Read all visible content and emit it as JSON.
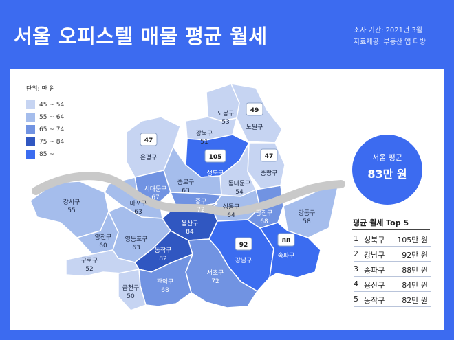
{
  "header": {
    "title": "서울 오피스텔 매물 평균 월세",
    "survey_period": "조사 기간: 2021년 3월",
    "source": "자료제공: 부동산 앱 다방"
  },
  "unit_label": "단위: 만 원",
  "legend": [
    {
      "label": "45 ~ 54",
      "color": "#c6d4f2"
    },
    {
      "label": "55 ~ 64",
      "color": "#a5bdec"
    },
    {
      "label": "65 ~ 74",
      "color": "#7193e2"
    },
    {
      "label": "75 ~ 84",
      "color": "#3057c1"
    },
    {
      "label": "85 ~",
      "color": "#3b6cf0"
    }
  ],
  "seoul_average": {
    "label": "서울 평균",
    "value": "83만 원"
  },
  "top5": {
    "title": "평균 월세 Top 5",
    "rows": [
      {
        "rank": "1",
        "name": "성북구",
        "value": "105만 원"
      },
      {
        "rank": "2",
        "name": "강남구",
        "value": "92만 원"
      },
      {
        "rank": "3",
        "name": "송파구",
        "value": "88만 원"
      },
      {
        "rank": "4",
        "name": "용산구",
        "value": "84만 원"
      },
      {
        "rank": "5",
        "name": "동작구",
        "value": "82만 원"
      }
    ]
  },
  "chart_data": {
    "type": "choropleth",
    "unit": "만 원",
    "districts": [
      {
        "name": "도봉구",
        "value": 53
      },
      {
        "name": "노원구",
        "value": 49
      },
      {
        "name": "강북구",
        "value": 51
      },
      {
        "name": "은평구",
        "value": 47
      },
      {
        "name": "성북구",
        "value": 105
      },
      {
        "name": "중랑구",
        "value": 47
      },
      {
        "name": "동대문구",
        "value": 54
      },
      {
        "name": "종로구",
        "value": 63
      },
      {
        "name": "서대문구",
        "value": 67
      },
      {
        "name": "마포구",
        "value": 63
      },
      {
        "name": "중구",
        "value": 72
      },
      {
        "name": "성동구",
        "value": 64
      },
      {
        "name": "광진구",
        "value": 68
      },
      {
        "name": "강동구",
        "value": 58
      },
      {
        "name": "강서구",
        "value": 55
      },
      {
        "name": "용산구",
        "value": 84
      },
      {
        "name": "양천구",
        "value": 60
      },
      {
        "name": "영등포구",
        "value": 63
      },
      {
        "name": "동작구",
        "value": 82
      },
      {
        "name": "강남구",
        "value": 92
      },
      {
        "name": "송파구",
        "value": 88
      },
      {
        "name": "구로구",
        "value": 52
      },
      {
        "name": "서초구",
        "value": 72
      },
      {
        "name": "금천구",
        "value": 50
      },
      {
        "name": "관악구",
        "value": 68
      }
    ],
    "callouts": [
      "노원구",
      "은평구",
      "성북구",
      "중랑구",
      "강남구",
      "송파구"
    ]
  }
}
